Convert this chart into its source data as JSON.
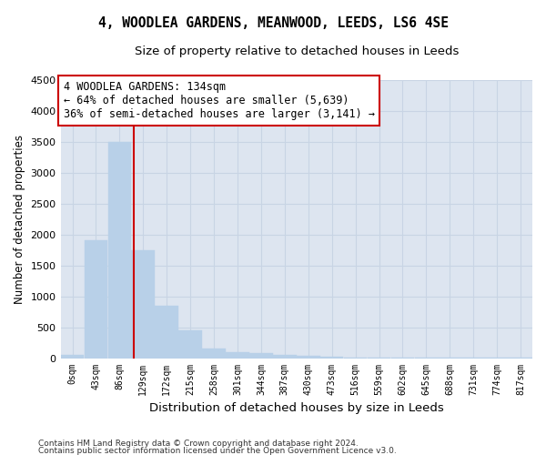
{
  "title": "4, WOODLEA GARDENS, MEANWOOD, LEEDS, LS6 4SE",
  "subtitle": "Size of property relative to detached houses in Leeds",
  "xlabel": "Distribution of detached houses by size in Leeds",
  "ylabel": "Number of detached properties",
  "bin_edges": [
    0,
    43,
    86,
    129,
    172,
    215,
    258,
    301,
    344,
    387,
    430,
    473,
    516,
    559,
    602,
    645,
    688,
    731,
    774,
    817,
    860
  ],
  "bar_values": [
    50,
    1900,
    3500,
    1750,
    850,
    450,
    150,
    100,
    80,
    55,
    40,
    20,
    15,
    10,
    8,
    5,
    4,
    3,
    2,
    1
  ],
  "bar_color": "#b8d0e8",
  "bar_edgecolor": "#b8d0e8",
  "grid_color": "#c8d4e4",
  "background_color": "#dde5f0",
  "property_line_x": 134,
  "property_line_color": "#cc0000",
  "annotation_text": "4 WOODLEA GARDENS: 134sqm\n← 64% of detached houses are smaller (5,639)\n36% of semi-detached houses are larger (3,141) →",
  "annotation_box_color": "#ffffff",
  "annotation_box_edgecolor": "#cc0000",
  "ylim": [
    0,
    4500
  ],
  "yticks": [
    0,
    500,
    1000,
    1500,
    2000,
    2500,
    3000,
    3500,
    4000,
    4500
  ],
  "footer_line1": "Contains HM Land Registry data © Crown copyright and database right 2024.",
  "footer_line2": "Contains public sector information licensed under the Open Government Licence v3.0.",
  "title_fontsize": 10.5,
  "subtitle_fontsize": 9.5,
  "tick_label_fontsize": 7,
  "ylabel_fontsize": 8.5,
  "xlabel_fontsize": 9.5,
  "annotation_fontsize": 8.5
}
